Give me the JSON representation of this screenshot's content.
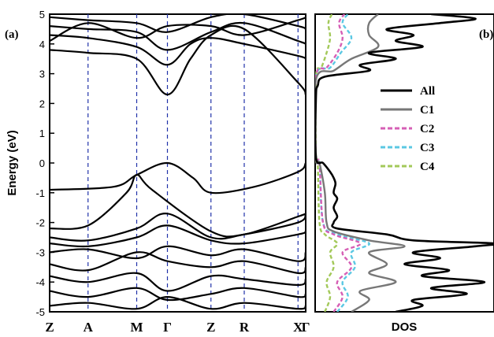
{
  "chart_data": [
    {
      "type": "line",
      "panel_label": "(a)",
      "ylabel": "Energy (eV)",
      "ylim": [
        -5,
        5
      ],
      "yticks": [
        "5",
        "4",
        "3",
        "2",
        "1",
        "0",
        "-1",
        "-2",
        "-3",
        "-4",
        "-5"
      ],
      "kpoints": [
        "Z",
        "A",
        "M",
        "Γ",
        "Z",
        "R",
        "X",
        "Γ"
      ],
      "kpoint_positions": [
        0,
        0.15,
        0.34,
        0.46,
        0.63,
        0.76,
        0.97,
        1.0
      ],
      "series": [
        {
          "values": [
            [
              0,
              -0.9
            ],
            [
              0.25,
              -0.8
            ],
            [
              0.34,
              -0.4
            ],
            [
              0.46,
              0.0
            ],
            [
              0.56,
              -0.5
            ],
            [
              0.63,
              -1.0
            ],
            [
              0.8,
              -0.8
            ],
            [
              0.97,
              -0.3
            ],
            [
              1.0,
              0.0
            ]
          ]
        },
        {
          "values": [
            [
              0,
              -2.2
            ],
            [
              0.15,
              -2.1
            ],
            [
              0.3,
              -1.0
            ],
            [
              0.34,
              -0.4
            ],
            [
              0.4,
              -0.9
            ],
            [
              0.63,
              -2.3
            ],
            [
              0.76,
              -2.4
            ],
            [
              0.97,
              -1.8
            ],
            [
              1.0,
              -1.7
            ]
          ]
        },
        {
          "values": [
            [
              0,
              -2.5
            ],
            [
              0.15,
              -2.6
            ],
            [
              0.34,
              -2.2
            ],
            [
              0.46,
              -1.7
            ],
            [
              0.63,
              -2.5
            ],
            [
              0.76,
              -2.4
            ],
            [
              0.97,
              -2.0
            ],
            [
              1.0,
              -1.7
            ]
          ]
        },
        {
          "values": [
            [
              0,
              -2.7
            ],
            [
              0.15,
              -2.8
            ],
            [
              0.34,
              -2.5
            ],
            [
              0.46,
              -2.1
            ],
            [
              0.63,
              -2.6
            ],
            [
              0.76,
              -2.7
            ],
            [
              0.97,
              -2.4
            ],
            [
              1.0,
              -2.3
            ]
          ]
        },
        {
          "values": [
            [
              0,
              -3.0
            ],
            [
              0.15,
              -2.9
            ],
            [
              0.34,
              -3.2
            ],
            [
              0.46,
              -2.8
            ],
            [
              0.63,
              -3.1
            ],
            [
              0.76,
              -2.9
            ],
            [
              0.97,
              -3.3
            ],
            [
              1.0,
              -3.0
            ]
          ]
        },
        {
          "values": [
            [
              0,
              -3.4
            ],
            [
              0.15,
              -3.6
            ],
            [
              0.34,
              -3.0
            ],
            [
              0.46,
              -3.3
            ],
            [
              0.63,
              -3.5
            ],
            [
              0.76,
              -3.3
            ],
            [
              0.97,
              -3.7
            ],
            [
              1.0,
              -3.5
            ]
          ]
        },
        {
          "values": [
            [
              0,
              -3.8
            ],
            [
              0.15,
              -4.0
            ],
            [
              0.34,
              -3.7
            ],
            [
              0.46,
              -4.3
            ],
            [
              0.63,
              -3.8
            ],
            [
              0.76,
              -3.9
            ],
            [
              0.97,
              -4.1
            ],
            [
              1.0,
              -3.9
            ]
          ]
        },
        {
          "values": [
            [
              0,
              -4.3
            ],
            [
              0.15,
              -4.5
            ],
            [
              0.34,
              -4.2
            ],
            [
              0.46,
              -4.6
            ],
            [
              0.63,
              -4.4
            ],
            [
              0.76,
              -4.2
            ],
            [
              0.97,
              -4.5
            ],
            [
              1.0,
              -4.4
            ]
          ]
        },
        {
          "values": [
            [
              0,
              -4.8
            ],
            [
              0.15,
              -4.7
            ],
            [
              0.34,
              -4.9
            ],
            [
              0.46,
              -4.5
            ],
            [
              0.63,
              -4.9
            ],
            [
              0.76,
              -4.7
            ],
            [
              0.97,
              -4.9
            ],
            [
              1.0,
              -4.8
            ]
          ]
        },
        {
          "values": [
            [
              0,
              3.8
            ],
            [
              0.15,
              3.7
            ],
            [
              0.34,
              3.5
            ],
            [
              0.46,
              2.3
            ],
            [
              0.55,
              3.5
            ],
            [
              0.63,
              4.3
            ],
            [
              0.76,
              4.5
            ],
            [
              0.97,
              2.7
            ],
            [
              1.0,
              2.3
            ]
          ]
        },
        {
          "values": [
            [
              0,
              4.3
            ],
            [
              0.15,
              4.2
            ],
            [
              0.34,
              3.9
            ],
            [
              0.46,
              3.3
            ],
            [
              0.55,
              4.0
            ],
            [
              0.63,
              4.2
            ],
            [
              0.76,
              4.0
            ],
            [
              0.97,
              3.6
            ],
            [
              1.0,
              3.5
            ]
          ]
        },
        {
          "values": [
            [
              0,
              4.6
            ],
            [
              0.15,
              4.5
            ],
            [
              0.34,
              4.4
            ],
            [
              0.46,
              3.8
            ],
            [
              0.63,
              4.4
            ],
            [
              0.76,
              4.7
            ],
            [
              0.97,
              4.1
            ],
            [
              1.0,
              4.0
            ]
          ]
        },
        {
          "values": [
            [
              0,
              4.9
            ],
            [
              0.15,
              4.8
            ],
            [
              0.34,
              4.7
            ],
            [
              0.46,
              4.4
            ],
            [
              0.63,
              4.9
            ],
            [
              0.76,
              5.0
            ],
            [
              0.97,
              4.6
            ],
            [
              1.0,
              4.5
            ]
          ]
        },
        {
          "values": [
            [
              0,
              4.1
            ],
            [
              0.15,
              4.7
            ],
            [
              0.34,
              4.2
            ],
            [
              0.46,
              4.6
            ],
            [
              0.63,
              4.6
            ],
            [
              0.76,
              4.3
            ],
            [
              0.97,
              4.8
            ],
            [
              1.0,
              4.9
            ]
          ]
        }
      ]
    },
    {
      "type": "line",
      "panel_label": "(b)",
      "xlabel": "DOS",
      "ylim": [
        -5,
        5
      ],
      "legend": [
        "All",
        "C1",
        "C2",
        "C3",
        "C4"
      ],
      "legend_placement": "upper-right",
      "series": [
        {
          "name": "All",
          "color": "#000000",
          "dash": "solid",
          "values": [
            [
              -5,
              0.45
            ],
            [
              -4.8,
              0.6
            ],
            [
              -4.6,
              0.55
            ],
            [
              -4.4,
              0.85
            ],
            [
              -4.2,
              0.65
            ],
            [
              -4.0,
              0.95
            ],
            [
              -3.8,
              0.6
            ],
            [
              -3.6,
              0.75
            ],
            [
              -3.4,
              0.5
            ],
            [
              -3.2,
              0.7
            ],
            [
              -3.0,
              0.55
            ],
            [
              -2.8,
              0.9
            ],
            [
              -2.7,
              1.0
            ],
            [
              -2.6,
              0.55
            ],
            [
              -2.4,
              0.4
            ],
            [
              -2.2,
              0.12
            ],
            [
              -2.0,
              0.1
            ],
            [
              -1.8,
              0.12
            ],
            [
              -1.5,
              0.1
            ],
            [
              -1.2,
              0.12
            ],
            [
              -1.0,
              0.1
            ],
            [
              -0.7,
              0.11
            ],
            [
              -0.5,
              0.1
            ],
            [
              -0.3,
              0.08
            ],
            [
              0.0,
              0.04
            ],
            [
              0.2,
              0.0
            ],
            [
              2.2,
              0.0
            ],
            [
              2.6,
              0.01
            ],
            [
              2.9,
              0.05
            ],
            [
              3.1,
              0.3
            ],
            [
              3.3,
              0.25
            ],
            [
              3.5,
              0.45
            ],
            [
              3.7,
              0.3
            ],
            [
              3.9,
              0.6
            ],
            [
              4.1,
              0.45
            ],
            [
              4.3,
              0.55
            ],
            [
              4.5,
              0.4
            ],
            [
              4.7,
              0.7
            ],
            [
              4.85,
              0.9
            ],
            [
              5.0,
              0.65
            ]
          ]
        },
        {
          "name": "C1",
          "color": "#777777",
          "dash": "solid",
          "values": [
            [
              -5,
              0.2
            ],
            [
              -4.6,
              0.3
            ],
            [
              -4.3,
              0.25
            ],
            [
              -4.0,
              0.45
            ],
            [
              -3.7,
              0.3
            ],
            [
              -3.4,
              0.4
            ],
            [
              -3.0,
              0.3
            ],
            [
              -2.8,
              0.5
            ],
            [
              -2.6,
              0.3
            ],
            [
              -2.3,
              0.1
            ],
            [
              -2.0,
              0.06
            ],
            [
              -1.0,
              0.05
            ],
            [
              0.0,
              0.02
            ],
            [
              0.2,
              0.0
            ],
            [
              2.8,
              0.0
            ],
            [
              3.1,
              0.1
            ],
            [
              3.5,
              0.2
            ],
            [
              3.9,
              0.35
            ],
            [
              4.3,
              0.3
            ],
            [
              4.7,
              0.3
            ],
            [
              5.0,
              0.35
            ]
          ]
        },
        {
          "name": "C2",
          "color": "#d65fb5",
          "dash": "dashed",
          "values": [
            [
              -5,
              0.1
            ],
            [
              -4.5,
              0.15
            ],
            [
              -4.0,
              0.12
            ],
            [
              -3.5,
              0.2
            ],
            [
              -3.0,
              0.15
            ],
            [
              -2.7,
              0.25
            ],
            [
              -2.4,
              0.1
            ],
            [
              -2.0,
              0.04
            ],
            [
              0.0,
              0.02
            ],
            [
              0.2,
              0.0
            ],
            [
              2.9,
              0.0
            ],
            [
              3.2,
              0.06
            ],
            [
              3.7,
              0.12
            ],
            [
              4.2,
              0.15
            ],
            [
              4.7,
              0.13
            ],
            [
              5.0,
              0.16
            ]
          ]
        },
        {
          "name": "C3",
          "color": "#5bc8e3",
          "dash": "dashed",
          "values": [
            [
              -5,
              0.12
            ],
            [
              -4.5,
              0.18
            ],
            [
              -4.0,
              0.15
            ],
            [
              -3.5,
              0.22
            ],
            [
              -3.0,
              0.2
            ],
            [
              -2.7,
              0.3
            ],
            [
              -2.4,
              0.12
            ],
            [
              -2.0,
              0.04
            ],
            [
              0.0,
              0.02
            ],
            [
              0.2,
              0.0
            ],
            [
              2.9,
              0.0
            ],
            [
              3.2,
              0.08
            ],
            [
              3.7,
              0.14
            ],
            [
              4.2,
              0.2
            ],
            [
              4.7,
              0.15
            ],
            [
              5.0,
              0.18
            ]
          ]
        },
        {
          "name": "C4",
          "color": "#a3c95a",
          "dash": "dashed",
          "values": [
            [
              -5,
              0.05
            ],
            [
              -4.5,
              0.08
            ],
            [
              -4.0,
              0.06
            ],
            [
              -3.5,
              0.1
            ],
            [
              -3.0,
              0.08
            ],
            [
              -2.7,
              0.12
            ],
            [
              -2.4,
              0.05
            ],
            [
              -2.0,
              0.02
            ],
            [
              0.0,
              0.01
            ],
            [
              0.2,
              0.0
            ],
            [
              2.9,
              0.0
            ],
            [
              3.2,
              0.03
            ],
            [
              3.7,
              0.06
            ],
            [
              4.2,
              0.08
            ],
            [
              4.7,
              0.07
            ],
            [
              5.0,
              0.09
            ]
          ]
        }
      ]
    }
  ]
}
